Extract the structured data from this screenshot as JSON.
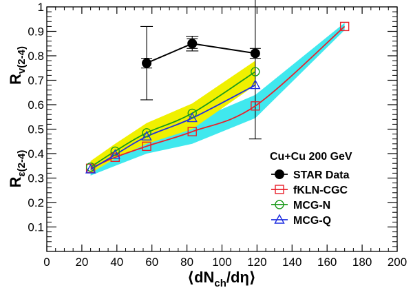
{
  "chart_data": {
    "type": "line",
    "xlabel_parts": {
      "open": "⟨",
      "main": "dN",
      "sub": "ch",
      "rest": "/dη",
      "close": "⟩"
    },
    "ylabel_top": {
      "main": "R",
      "sub": "v(2-4)"
    },
    "ylabel_bottom": {
      "main": "R",
      "sub": "ε(2-4)"
    },
    "xlim": [
      0,
      200
    ],
    "ylim": [
      0,
      1
    ],
    "x_ticks": [
      0,
      20,
      40,
      60,
      80,
      100,
      120,
      140,
      160,
      180,
      200
    ],
    "y_ticks": [
      0.1,
      0.2,
      0.3,
      0.4,
      0.5,
      0.6,
      0.7,
      0.8,
      0.9,
      1.0
    ],
    "x_tick_labels": [
      "0",
      "20",
      "40",
      "60",
      "80",
      "100",
      "120",
      "140",
      "160",
      "180",
      "200"
    ],
    "y_tick_labels": [
      "0.1",
      "0.2",
      "0.3",
      "0.4",
      "0.5",
      "0.6",
      "0.7",
      "0.8",
      "0.9",
      "1"
    ],
    "grid": false,
    "legend": {
      "title": "Cu+Cu 200 GeV",
      "placement": "lower-right",
      "entries": [
        "STAR Data",
        "fKLN-CGC",
        "MCG-N",
        "MCG-Q"
      ]
    },
    "series": [
      {
        "name": "STAR Data",
        "color": "#000000",
        "marker": "filled-circle",
        "x": [
          57,
          83,
          119
        ],
        "y": [
          0.77,
          0.85,
          0.81
        ],
        "err_low": [
          0.15,
          0.03,
          0.35
        ],
        "err_high": [
          0.15,
          0.03,
          0.35
        ],
        "inner_err": [
          0.02,
          0.02,
          0.02
        ]
      },
      {
        "name": "fKLN-CGC",
        "color": "#e8202a",
        "marker": "open-square",
        "x": [
          25,
          39,
          57,
          83,
          119,
          170
        ],
        "y": [
          0.34,
          0.385,
          0.43,
          0.49,
          0.595,
          0.92
        ],
        "band_color": "#40e8ee",
        "band_low": [
          0.31,
          0.35,
          0.4,
          0.44,
          0.545,
          0.905
        ],
        "band_high": [
          0.37,
          0.42,
          0.47,
          0.53,
          0.64,
          0.935
        ]
      },
      {
        "name": "MCG-N",
        "color": "#1a9a1a",
        "marker": "open-circle",
        "x": [
          25,
          39,
          57,
          83,
          119
        ],
        "y": [
          0.345,
          0.41,
          0.485,
          0.565,
          0.735
        ],
        "band_color": "#f0f000",
        "band_low": [
          0.32,
          0.38,
          0.44,
          0.5,
          0.68
        ],
        "band_high": [
          0.37,
          0.44,
          0.525,
          0.605,
          0.78
        ]
      },
      {
        "name": "MCG-Q",
        "color": "#1f2fe0",
        "marker": "open-triangle",
        "x": [
          25,
          39,
          57,
          83,
          119
        ],
        "y": [
          0.335,
          0.395,
          0.47,
          0.545,
          0.68
        ]
      }
    ]
  }
}
